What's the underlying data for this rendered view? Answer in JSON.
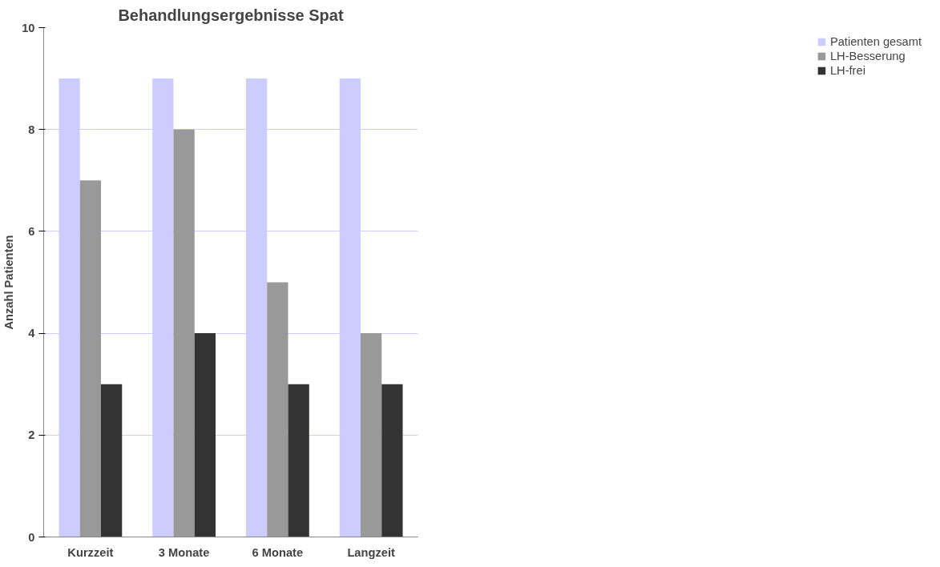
{
  "chart_data": {
    "type": "bar",
    "title": "Behandlungsergebnisse Spat",
    "ylabel": "Anzahl Patienten",
    "categories": [
      "Kurzzeit",
      "3 Monate",
      "6 Monate",
      "Langzeit"
    ],
    "series": [
      {
        "name": "Patienten gesamt",
        "color": "#ccccff",
        "values": [
          9,
          9,
          9,
          9
        ]
      },
      {
        "name": "LH-Besserung",
        "color": "#999999",
        "values": [
          7,
          8,
          5,
          4
        ]
      },
      {
        "name": "LH-frei",
        "color": "#333333",
        "values": [
          3,
          4,
          3,
          3
        ]
      }
    ],
    "ylim": [
      0,
      10
    ],
    "yticks": [
      0,
      2,
      4,
      6,
      8,
      10
    ],
    "grid": "y",
    "legend": "right"
  }
}
